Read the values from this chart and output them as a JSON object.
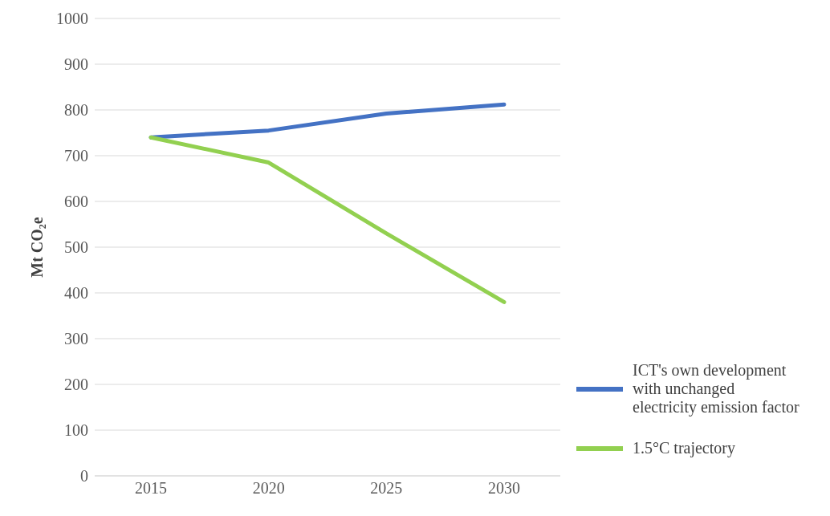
{
  "chart_data": {
    "type": "line",
    "ylabel": "Mt CO₂e",
    "categories": [
      "2015",
      "2020",
      "2025",
      "2030"
    ],
    "series": [
      {
        "name": "ICT's own development with unchanged electricity emission factor",
        "color": "#4472c4",
        "values": [
          740,
          755,
          792,
          812
        ]
      },
      {
        "name": "1.5°C trajectory",
        "color": "#92d050",
        "values": [
          740,
          685,
          530,
          380
        ]
      }
    ],
    "ylim": [
      0,
      1000
    ],
    "yticks": [
      0,
      100,
      200,
      300,
      400,
      500,
      600,
      700,
      800,
      900,
      1000
    ],
    "grid": "y",
    "legend": "right",
    "marker": "none"
  }
}
